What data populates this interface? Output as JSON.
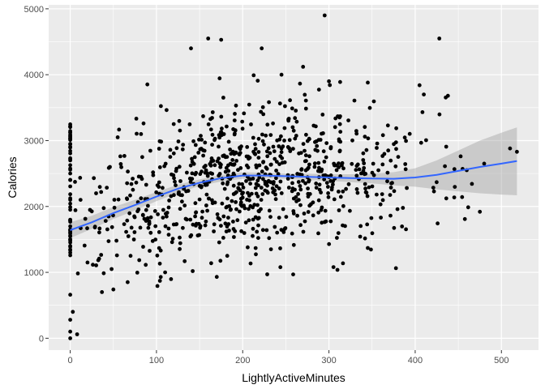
{
  "chart_data": {
    "type": "scatter",
    "xlabel": "LightlyActiveMinutes",
    "ylabel": "Calories",
    "xlim": [
      -25,
      543
    ],
    "ylim": [
      -180,
      5060
    ],
    "x_ticks": [
      0,
      100,
      200,
      300,
      400,
      500
    ],
    "y_ticks": [
      0,
      1000,
      2000,
      3000,
      4000,
      5000
    ],
    "grid": true,
    "colors": {
      "panel_background": "#ebebeb",
      "grid_major": "#ffffff",
      "points": "#000000",
      "smooth_line": "#3366ff",
      "confidence_band": "#999999"
    },
    "point_count_estimate": 940,
    "visible_points_sample": [
      {
        "x": 0,
        "y": 3210
      },
      {
        "x": 0,
        "y": 2950
      },
      {
        "x": 0,
        "y": 2700
      },
      {
        "x": 0,
        "y": 2500
      },
      {
        "x": 0,
        "y": 2100
      },
      {
        "x": 0,
        "y": 1950
      },
      {
        "x": 0,
        "y": 1700
      },
      {
        "x": 0,
        "y": 1500
      },
      {
        "x": 0,
        "y": 1400
      },
      {
        "x": 0,
        "y": 660
      },
      {
        "x": 0,
        "y": 280
      },
      {
        "x": 0,
        "y": 100
      },
      {
        "x": 0,
        "y": 0
      },
      {
        "x": 3,
        "y": 400
      },
      {
        "x": 8,
        "y": 60
      },
      {
        "x": 12,
        "y": 2100
      },
      {
        "x": 20,
        "y": 1150
      },
      {
        "x": 30,
        "y": 2200
      },
      {
        "x": 46,
        "y": 2600
      },
      {
        "x": 48,
        "y": 1050
      },
      {
        "x": 50,
        "y": 740
      },
      {
        "x": 55,
        "y": 3050
      },
      {
        "x": 70,
        "y": 1250
      },
      {
        "x": 85,
        "y": 3260
      },
      {
        "x": 105,
        "y": 930
      },
      {
        "x": 110,
        "y": 1000
      },
      {
        "x": 120,
        "y": 3250
      },
      {
        "x": 140,
        "y": 4400
      },
      {
        "x": 160,
        "y": 4550
      },
      {
        "x": 175,
        "y": 4530
      },
      {
        "x": 222,
        "y": 4400
      },
      {
        "x": 245,
        "y": 4000
      },
      {
        "x": 270,
        "y": 4120
      },
      {
        "x": 295,
        "y": 4900
      },
      {
        "x": 300,
        "y": 3900
      },
      {
        "x": 345,
        "y": 3880
      },
      {
        "x": 345,
        "y": 1370
      },
      {
        "x": 405,
        "y": 3840
      },
      {
        "x": 410,
        "y": 3700
      },
      {
        "x": 428,
        "y": 4550
      },
      {
        "x": 438,
        "y": 3680
      },
      {
        "x": 455,
        "y": 2570
      },
      {
        "x": 475,
        "y": 1920
      },
      {
        "x": 480,
        "y": 2650
      },
      {
        "x": 510,
        "y": 2880
      },
      {
        "x": 518,
        "y": 2830
      }
    ],
    "smooth_line": {
      "method": "loess",
      "x": [
        0,
        25,
        50,
        75,
        100,
        125,
        150,
        175,
        200,
        225,
        250,
        275,
        300,
        325,
        350,
        375,
        400,
        425,
        450,
        475,
        500,
        518
      ],
      "y": [
        1640,
        1760,
        1900,
        2020,
        2150,
        2270,
        2360,
        2430,
        2470,
        2470,
        2460,
        2450,
        2440,
        2430,
        2425,
        2420,
        2440,
        2480,
        2540,
        2600,
        2650,
        2690
      ],
      "ci_low": [
        1520,
        1660,
        1810,
        1940,
        2080,
        2210,
        2310,
        2380,
        2420,
        2430,
        2420,
        2400,
        2390,
        2370,
        2350,
        2320,
        2300,
        2260,
        2230,
        2200,
        2180,
        2170
      ],
      "ci_high": [
        1760,
        1860,
        1990,
        2100,
        2220,
        2330,
        2410,
        2480,
        2520,
        2510,
        2500,
        2500,
        2490,
        2490,
        2500,
        2520,
        2580,
        2700,
        2850,
        3000,
        3120,
        3200
      ]
    }
  }
}
